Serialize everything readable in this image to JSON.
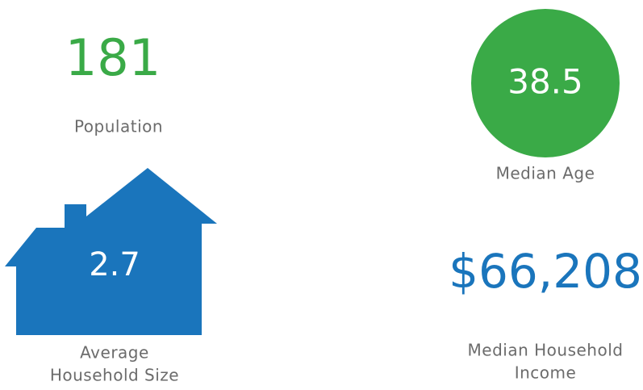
{
  "population": {
    "value": "181",
    "label": "Population"
  },
  "median_age": {
    "value": "38.5",
    "label": "Median Age"
  },
  "household_size": {
    "value": "2.7",
    "label_lines": [
      "Average",
      "Household Size"
    ]
  },
  "median_income": {
    "value": "$66,208",
    "label_lines": [
      "Median Household",
      "Income"
    ]
  }
}
